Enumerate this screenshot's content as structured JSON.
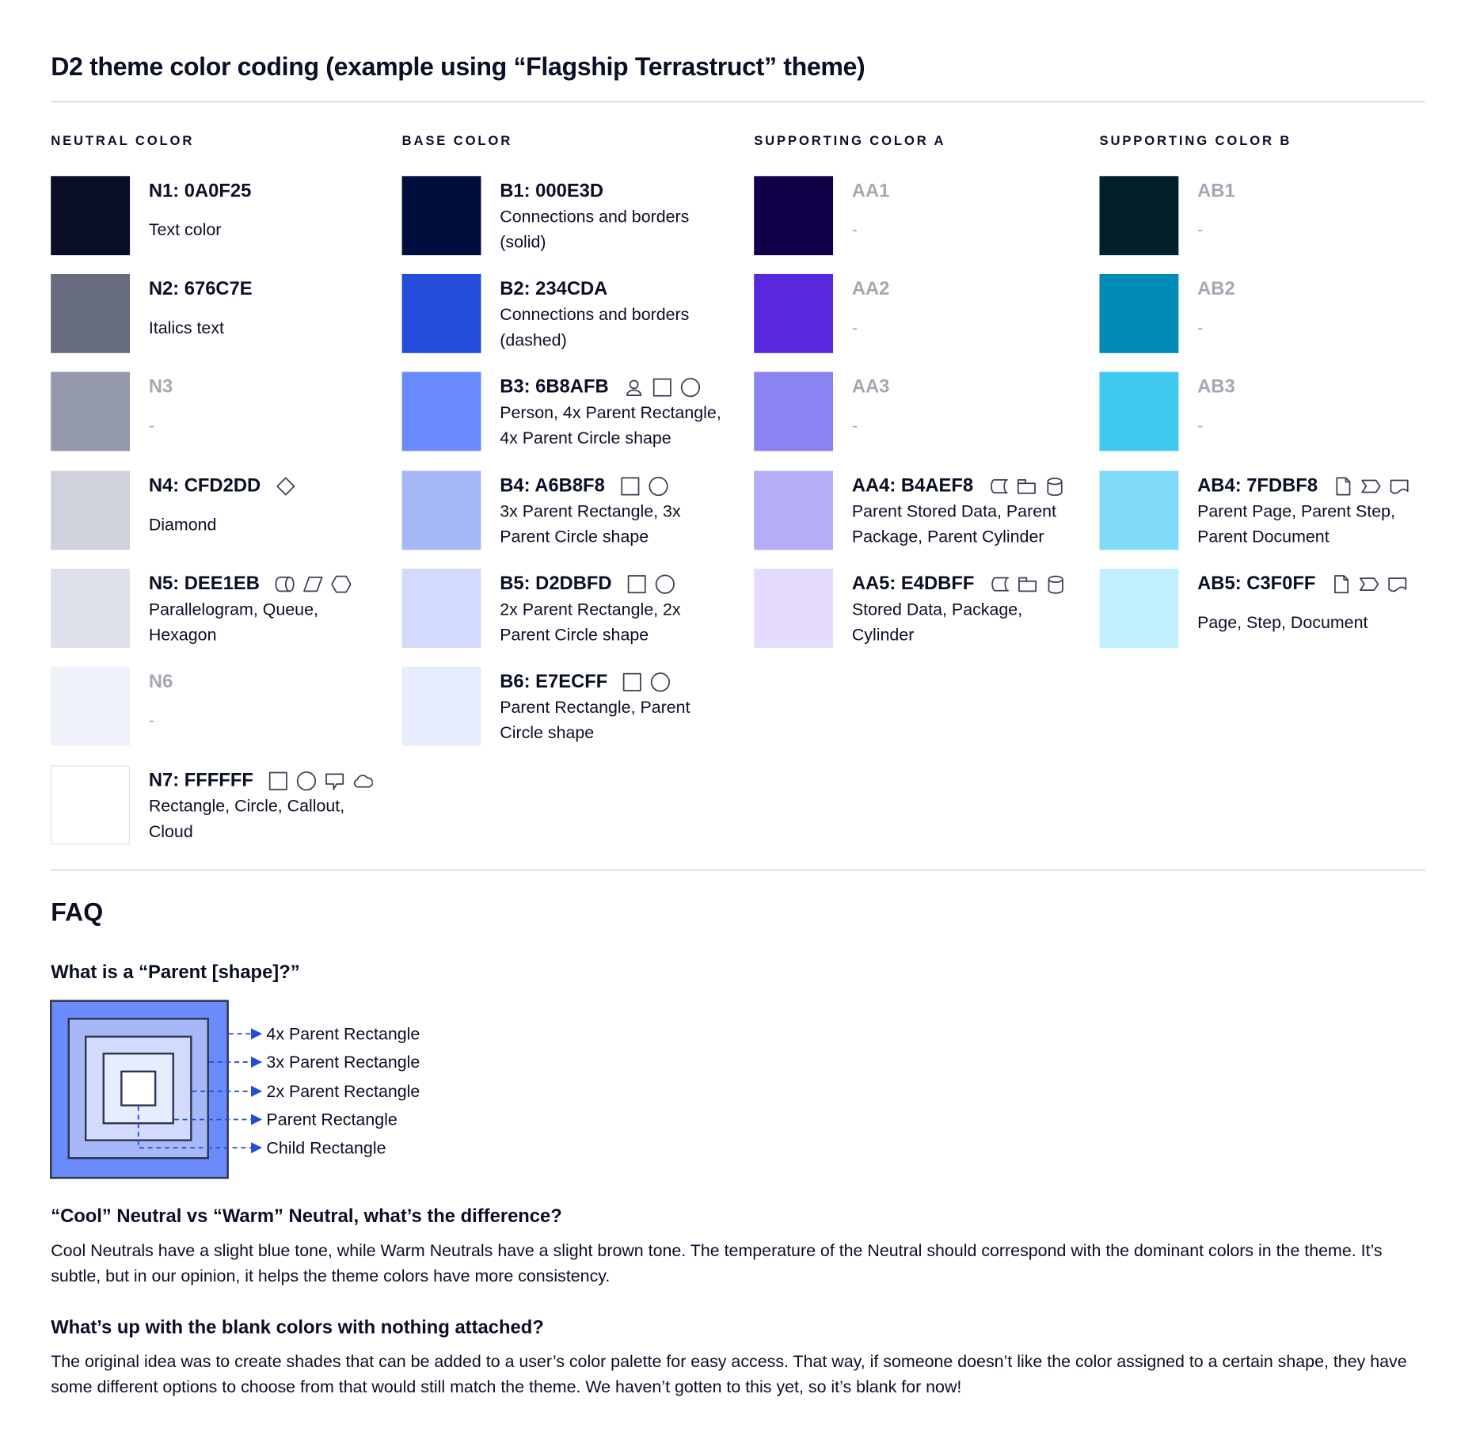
{
  "title": "D2 theme color coding (example using “Flagship Terrastruct” theme)",
  "columns": [
    {
      "header": "NEUTRAL COLOR",
      "items": [
        {
          "label": "N1: 0A0F25",
          "description": "Text color",
          "color": "#0A0F25",
          "muted": false,
          "icons": []
        },
        {
          "label": "N2: 676C7E",
          "description": "Italics text",
          "color": "#676C7E",
          "muted": false,
          "icons": []
        },
        {
          "label": "N3",
          "description": "-",
          "color": "#9499AB",
          "muted": true,
          "icons": []
        },
        {
          "label": "N4: CFD2DD",
          "description": "Diamond",
          "color": "#CFD2DD",
          "muted": false,
          "icons": [
            "diamond"
          ]
        },
        {
          "label": "N5: DEE1EB",
          "description": "Parallelogram, Queue, Hexagon",
          "color": "#DEE1EB",
          "muted": false,
          "icons": [
            "queue",
            "parallelogram",
            "hexagon"
          ]
        },
        {
          "label": "N6",
          "description": "-",
          "color": "#EEF1F8",
          "muted": true,
          "icons": []
        },
        {
          "label": "N7: FFFFFF",
          "description": "Rectangle, Circle, Callout, Cloud",
          "color": "#FFFFFF",
          "muted": false,
          "icons": [
            "rectangle",
            "circle",
            "callout",
            "cloud"
          ]
        }
      ]
    },
    {
      "header": "BASE COLOR",
      "items": [
        {
          "label": "B1: 000E3D",
          "description": "Connections and borders (solid)",
          "color": "#000E3D",
          "muted": false,
          "icons": []
        },
        {
          "label": "B2: 234CDA",
          "description": "Connections and borders (dashed)",
          "color": "#234CDA",
          "muted": false,
          "icons": []
        },
        {
          "label": "B3: 6B8AFB",
          "description": "Person, 4x Parent Rectangle, 4x Parent Circle shape",
          "color": "#6B8AFB",
          "muted": false,
          "icons": [
            "person",
            "rectangle",
            "circle"
          ]
        },
        {
          "label": "B4: A6B8F8",
          "description": "3x Parent Rectangle, 3x Parent Circle shape",
          "color": "#A6B8F8",
          "muted": false,
          "icons": [
            "rectangle",
            "circle"
          ]
        },
        {
          "label": "B5: D2DBFD",
          "description": "2x Parent Rectangle, 2x Parent Circle shape",
          "color": "#D2DBFD",
          "muted": false,
          "icons": [
            "rectangle",
            "circle"
          ]
        },
        {
          "label": "B6: E7ECFF",
          "description": "Parent Rectangle, Parent Circle shape",
          "color": "#E7ECFF",
          "muted": false,
          "icons": [
            "rectangle",
            "circle"
          ]
        }
      ]
    },
    {
      "header": "SUPPORTING COLOR A",
      "items": [
        {
          "label": "AA1",
          "description": "-",
          "color": "#10004A",
          "muted": true,
          "icons": []
        },
        {
          "label": "AA2",
          "description": "-",
          "color": "#5828DE",
          "muted": true,
          "icons": []
        },
        {
          "label": "AA3",
          "description": "-",
          "color": "#8B83F2",
          "muted": true,
          "icons": []
        },
        {
          "label": "AA4: B4AEF8",
          "description": "Parent Stored Data, Parent Package,  Parent Cylinder",
          "color": "#B4AEF8",
          "muted": false,
          "icons": [
            "stored-data",
            "package",
            "cylinder"
          ]
        },
        {
          "label": "AA5: E4DBFF",
          "description": "Stored Data, Package, Cylinder",
          "color": "#E4DBFF",
          "muted": false,
          "icons": [
            "stored-data",
            "package",
            "cylinder"
          ]
        }
      ]
    },
    {
      "header": "SUPPORTING COLOR B",
      "items": [
        {
          "label": "AB1",
          "description": "-",
          "color": "#01202A",
          "muted": true,
          "icons": []
        },
        {
          "label": "AB2",
          "description": "-",
          "color": "#008BB8",
          "muted": true,
          "icons": []
        },
        {
          "label": "AB3",
          "description": "-",
          "color": "#3FC9EF",
          "muted": true,
          "icons": []
        },
        {
          "label": "AB4: 7FDBF8",
          "description": "Parent Page, Parent Step, Parent Document",
          "color": "#7FDBF8",
          "muted": false,
          "icons": [
            "page",
            "step",
            "document"
          ]
        },
        {
          "label": "AB5: C3F0FF",
          "description": "Page, Step, Document",
          "color": "#C3F0FF",
          "muted": false,
          "icons": [
            "page",
            "step",
            "document"
          ]
        }
      ]
    }
  ],
  "faq": {
    "heading": "FAQ",
    "q1": "What is a “Parent [shape]?”",
    "diagram_labels": [
      "4x Parent Rectangle",
      "3x Parent Rectangle",
      "2x Parent Rectangle",
      "Parent Rectangle",
      "Child Rectangle"
    ],
    "diagram_colors": [
      "#6B8AFB",
      "#A6B8F8",
      "#D2DBFD",
      "#E7ECFF",
      "#FFFFFF"
    ],
    "arrow_color": "#234CDA",
    "q2": "“Cool” Neutral vs “Warm” Neutral, what’s the difference?",
    "a2": "Cool Neutrals have a slight blue tone, while Warm Neutrals have a slight brown tone. The temperature of the Neutral should correspond with the dominant colors in the theme. It’s subtle, but in our opinion, it helps the theme colors have more consistency.",
    "q3": "What’s up with the blank colors with nothing attached?",
    "a3": "The original idea was to create shades that can be added to a user’s color palette for easy access. That way, if someone doesn’t like the color assigned to a certain shape, they have some different options to choose from that would still match the theme. We haven’t gotten to this yet, so it’s blank for now!"
  }
}
